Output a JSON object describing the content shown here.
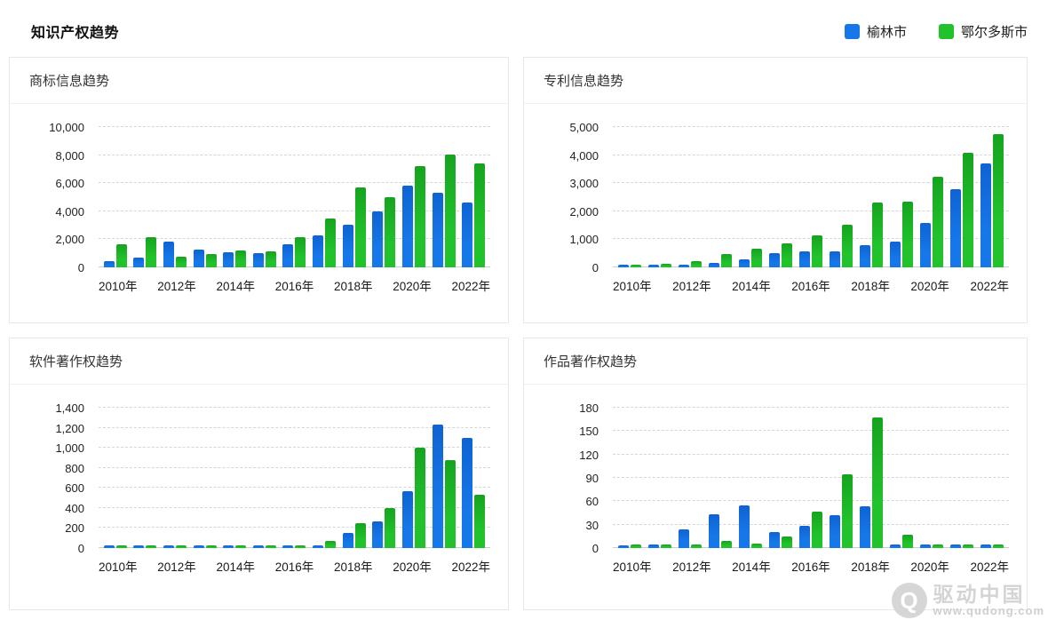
{
  "page": {
    "title": "知识产权趋势"
  },
  "legend": {
    "items": [
      {
        "label": "榆林市",
        "color": "#1677e8"
      },
      {
        "label": "鄂尔多斯市",
        "color": "#21c22b"
      }
    ]
  },
  "watermark": {
    "logo_letter": "Q",
    "brand": "驱动中国",
    "url": "www.qudong.com"
  },
  "chart_data": [
    {
      "type": "bar",
      "title": "商标信息趋势",
      "categories": [
        "2010年",
        "2011年",
        "2012年",
        "2013年",
        "2014年",
        "2015年",
        "2016年",
        "2017年",
        "2018年",
        "2019年",
        "2020年",
        "2021年",
        "2022年"
      ],
      "x_tick_labels": [
        "2010年",
        "2012年",
        "2014年",
        "2016年",
        "2018年",
        "2020年",
        "2022年"
      ],
      "x_label_interval": 2,
      "series": [
        {
          "name": "榆林市",
          "color": "#1677e8",
          "color_top": "#0f63d2",
          "values": [
            420,
            700,
            1830,
            1260,
            1050,
            1010,
            1620,
            2310,
            3050,
            4000,
            5820,
            5330,
            4620
          ]
        },
        {
          "name": "鄂尔多斯市",
          "color": "#21c22b",
          "color_top": "#16a31f",
          "values": [
            1650,
            2150,
            780,
            950,
            1200,
            1160,
            2170,
            3500,
            5670,
            4980,
            7200,
            8030,
            7400
          ]
        }
      ],
      "ylim": [
        0,
        10000
      ],
      "y_step": 2000,
      "xlabel": "",
      "ylabel": "",
      "grid": "horizontal-dashed",
      "legend_position": "page-top-right"
    },
    {
      "type": "bar",
      "title": "专利信息趋势",
      "categories": [
        "2010年",
        "2011年",
        "2012年",
        "2013年",
        "2014年",
        "2015年",
        "2016年",
        "2017年",
        "2018年",
        "2019年",
        "2020年",
        "2021年",
        "2022年"
      ],
      "x_tick_labels": [
        "2010年",
        "2012年",
        "2014年",
        "2016年",
        "2018年",
        "2020年",
        "2022年"
      ],
      "x_label_interval": 2,
      "series": [
        {
          "name": "榆林市",
          "color": "#1677e8",
          "color_top": "#0f63d2",
          "values": [
            100,
            105,
            110,
            160,
            280,
            500,
            560,
            580,
            790,
            910,
            1580,
            2790,
            3700
          ]
        },
        {
          "name": "鄂尔多斯市",
          "color": "#21c22b",
          "color_top": "#16a31f",
          "values": [
            110,
            125,
            230,
            460,
            660,
            840,
            1150,
            1520,
            2310,
            2330,
            3240,
            4070,
            4760
          ]
        }
      ],
      "ylim": [
        0,
        5000
      ],
      "y_step": 1000,
      "xlabel": "",
      "ylabel": "",
      "grid": "horizontal-dashed",
      "legend_position": "page-top-right"
    },
    {
      "type": "bar",
      "title": "软件著作权趋势",
      "categories": [
        "2010年",
        "2011年",
        "2012年",
        "2013年",
        "2014年",
        "2015年",
        "2016年",
        "2017年",
        "2018年",
        "2019年",
        "2020年",
        "2021年",
        "2022年"
      ],
      "x_tick_labels": [
        "2010年",
        "2012年",
        "2014年",
        "2016年",
        "2018年",
        "2020年",
        "2022年"
      ],
      "x_label_interval": 2,
      "series": [
        {
          "name": "榆林市",
          "color": "#1677e8",
          "color_top": "#0f63d2",
          "values": [
            30,
            30,
            30,
            30,
            30,
            30,
            30,
            30,
            150,
            270,
            565,
            1235,
            1100
          ]
        },
        {
          "name": "鄂尔多斯市",
          "color": "#21c22b",
          "color_top": "#16a31f",
          "values": [
            30,
            30,
            30,
            30,
            30,
            30,
            30,
            75,
            250,
            400,
            1000,
            880,
            530
          ]
        }
      ],
      "ylim": [
        0,
        1400
      ],
      "y_step": 200,
      "xlabel": "",
      "ylabel": "",
      "grid": "horizontal-dashed",
      "legend_position": "page-top-right"
    },
    {
      "type": "bar",
      "title": "作品著作权趋势",
      "categories": [
        "2010年",
        "2011年",
        "2012年",
        "2013年",
        "2014年",
        "2015年",
        "2016年",
        "2017年",
        "2018年",
        "2019年",
        "2020年",
        "2021年",
        "2022年"
      ],
      "x_tick_labels": [
        "2010年",
        "2012年",
        "2014年",
        "2016年",
        "2018年",
        "2020年",
        "2022年"
      ],
      "x_label_interval": 2,
      "series": [
        {
          "name": "榆林市",
          "color": "#1677e8",
          "color_top": "#0f63d2",
          "values": [
            4,
            5,
            24,
            43,
            55,
            20,
            28,
            42,
            54,
            5,
            5,
            5,
            5
          ]
        },
        {
          "name": "鄂尔多斯市",
          "color": "#21c22b",
          "color_top": "#16a31f",
          "values": [
            5,
            5,
            5,
            9,
            6,
            15,
            47,
            95,
            168,
            17,
            5,
            5,
            5
          ]
        }
      ],
      "ylim": [
        0,
        180
      ],
      "y_step": 30,
      "xlabel": "",
      "ylabel": "",
      "grid": "horizontal-dashed",
      "legend_position": "page-top-right"
    }
  ]
}
